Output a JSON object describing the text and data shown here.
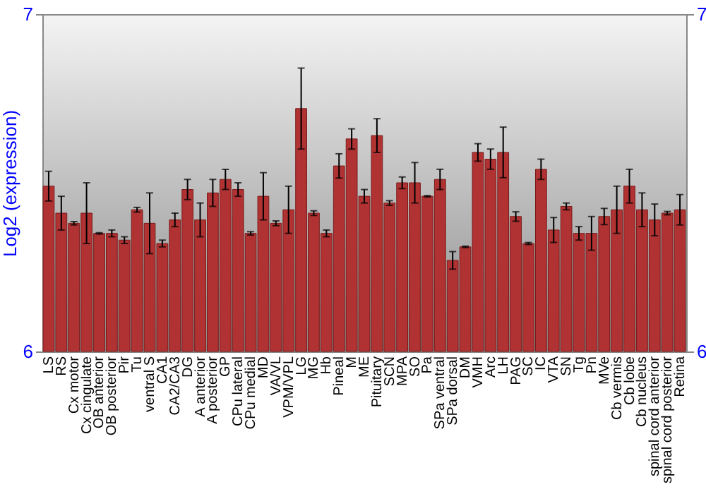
{
  "chart_data": {
    "type": "bar",
    "ylabel": "Log2 (expression)",
    "categories": [
      "LS",
      "RS",
      "Cx motor",
      "Cx cingulate",
      "OB anterior",
      "OB posterior",
      "Pir",
      "Tu",
      "ventral S",
      "CA1",
      "CA2/CA3",
      "DG",
      "A anterior",
      "A posterior",
      "GP",
      "CPu lateral",
      "CPu medial",
      "MD",
      "VA/VL",
      "VPM/VPL",
      "LG",
      "MG",
      "Hb",
      "Pineal",
      "M",
      "ME",
      "Pituitary",
      "SCN",
      "MPA",
      "SO",
      "Pa",
      "SPa ventral",
      "SPa dorsal",
      "DM",
      "VMH",
      "Arc",
      "LH",
      "PAG",
      "SC",
      "IC",
      "VTA",
      "SN",
      "Tg",
      "Pn",
      "MVe",
      "Cb vermis",
      "Cb lobe",
      "Cb nucleus",
      "spinal cord anterior",
      "spinal cord posterior",
      "Retina"
    ],
    "values": [
      6.49,
      6.41,
      6.38,
      6.41,
      6.35,
      6.35,
      6.33,
      6.42,
      6.38,
      6.32,
      6.39,
      6.48,
      6.39,
      6.47,
      6.51,
      6.48,
      6.35,
      6.46,
      6.38,
      6.42,
      6.72,
      6.41,
      6.35,
      6.55,
      6.63,
      6.46,
      6.64,
      6.44,
      6.5,
      6.5,
      6.46,
      6.51,
      6.27,
      6.31,
      6.59,
      6.57,
      6.59,
      6.4,
      6.32,
      6.54,
      6.36,
      6.43,
      6.35,
      6.35,
      6.4,
      6.42,
      6.49,
      6.42,
      6.39,
      6.41,
      6.42
    ],
    "errors": [
      0.044,
      0.05,
      0.005,
      0.09,
      0.002,
      0.01,
      0.01,
      0.007,
      0.09,
      0.01,
      0.02,
      0.03,
      0.05,
      0.04,
      0.03,
      0.02,
      0.005,
      0.07,
      0.007,
      0.07,
      0.12,
      0.007,
      0.01,
      0.036,
      0.03,
      0.02,
      0.05,
      0.007,
      0.017,
      0.06,
      0.002,
      0.03,
      0.026,
      0.002,
      0.026,
      0.03,
      0.075,
      0.014,
      0.003,
      0.03,
      0.037,
      0.01,
      0.02,
      0.05,
      0.024,
      0.07,
      0.05,
      0.05,
      0.047,
      0.005,
      0.045
    ],
    "color": "#b03232",
    "ylim": [
      6,
      7
    ],
    "yticks": [
      6,
      7
    ],
    "y2lim": [
      6,
      7
    ],
    "y2ticks": [
      6,
      7
    ],
    "grid": false
  }
}
